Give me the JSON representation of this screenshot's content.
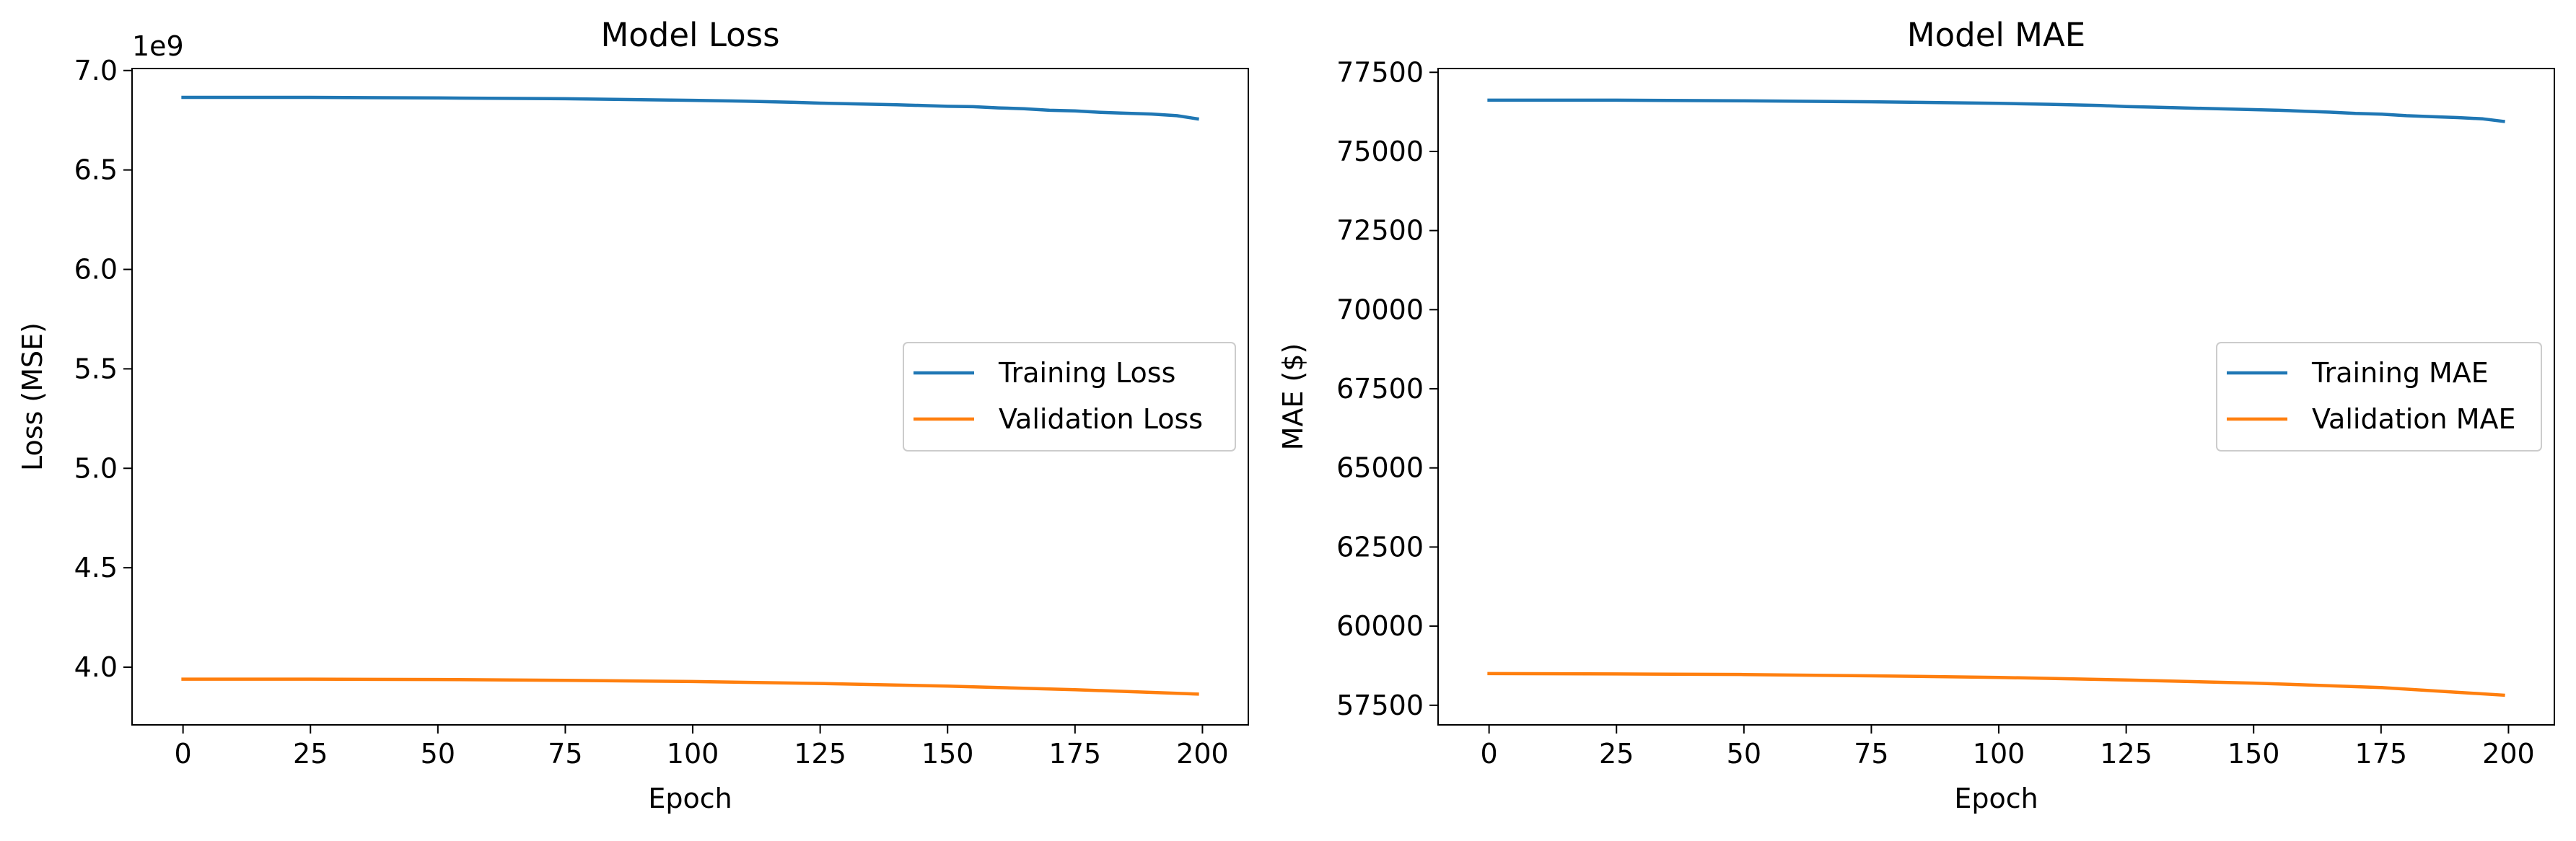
{
  "chart_data": [
    {
      "type": "line",
      "title": "Model Loss",
      "xlabel": "Epoch",
      "ylabel": "Loss (MSE)",
      "y_offset_text": "1e9",
      "xlim": [
        -10,
        209
      ],
      "ylim": [
        3.71,
        7.01
      ],
      "x_ticks": [
        0,
        25,
        50,
        75,
        100,
        125,
        150,
        175,
        200
      ],
      "x_tick_labels": [
        "0",
        "25",
        "50",
        "75",
        "100",
        "125",
        "150",
        "175",
        "200"
      ],
      "y_ticks": [
        4.0,
        4.5,
        5.0,
        5.5,
        6.0,
        6.5,
        7.0
      ],
      "y_tick_labels": [
        "4.0",
        "4.5",
        "5.0",
        "5.5",
        "6.0",
        "6.5",
        "7.0"
      ],
      "grid": false,
      "legend_position": "center-right",
      "series": [
        {
          "name": "Training Loss",
          "color": "#1f77b4",
          "x": [
            0,
            25,
            50,
            75,
            100,
            110,
            120,
            125,
            130,
            140,
            150,
            155,
            160,
            165,
            170,
            175,
            180,
            185,
            190,
            195,
            199
          ],
          "y": [
            6.865,
            6.865,
            6.862,
            6.858,
            6.85,
            6.846,
            6.84,
            6.836,
            6.833,
            6.828,
            6.82,
            6.818,
            6.812,
            6.808,
            6.8,
            6.797,
            6.79,
            6.785,
            6.781,
            6.773,
            6.757
          ]
        },
        {
          "name": "Validation Loss",
          "color": "#ff7f0e",
          "x": [
            0,
            25,
            50,
            75,
            100,
            125,
            150,
            175,
            199
          ],
          "y": [
            3.94,
            3.94,
            3.938,
            3.934,
            3.928,
            3.918,
            3.905,
            3.887,
            3.865
          ]
        }
      ]
    },
    {
      "type": "line",
      "title": "Model MAE",
      "xlabel": "Epoch",
      "ylabel": "MAE ($)",
      "xlim": [
        -10,
        209
      ],
      "ylim": [
        56880,
        77620
      ],
      "x_ticks": [
        0,
        25,
        50,
        75,
        100,
        125,
        150,
        175,
        200
      ],
      "x_tick_labels": [
        "0",
        "25",
        "50",
        "75",
        "100",
        "125",
        "150",
        "175",
        "200"
      ],
      "y_ticks": [
        57500,
        60000,
        62500,
        65000,
        67500,
        70000,
        72500,
        75000,
        77500
      ],
      "y_tick_labels": [
        "57500",
        "60000",
        "62500",
        "65000",
        "67500",
        "70000",
        "72500",
        "75000",
        "77500"
      ],
      "grid": false,
      "legend_position": "center-right",
      "series": [
        {
          "name": "Training MAE",
          "color": "#1f77b4",
          "x": [
            0,
            25,
            50,
            75,
            100,
            110,
            120,
            125,
            130,
            140,
            150,
            155,
            160,
            165,
            170,
            175,
            180,
            185,
            190,
            195,
            199
          ],
          "y": [
            76620,
            76620,
            76600,
            76570,
            76520,
            76490,
            76450,
            76420,
            76400,
            76360,
            76320,
            76300,
            76270,
            76240,
            76200,
            76180,
            76130,
            76100,
            76070,
            76030,
            75950
          ]
        },
        {
          "name": "Validation MAE",
          "color": "#ff7f0e",
          "x": [
            0,
            25,
            50,
            75,
            100,
            125,
            150,
            175,
            199
          ],
          "y": [
            58500,
            58490,
            58470,
            58430,
            58380,
            58300,
            58200,
            58060,
            57820
          ]
        }
      ]
    }
  ]
}
